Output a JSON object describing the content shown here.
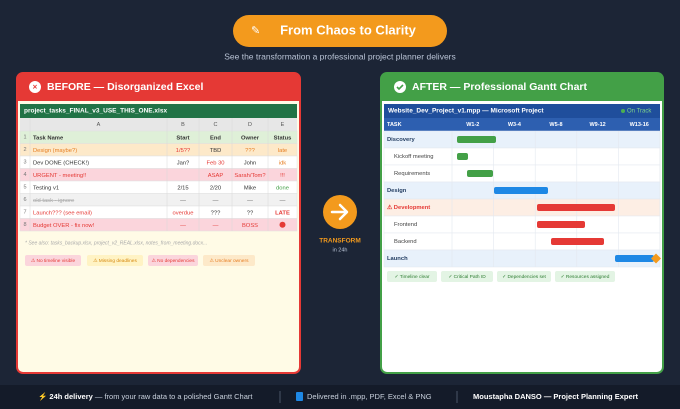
{
  "header": {
    "badge": "From Chaos to Clarity",
    "subtitle": "See the transformation a professional project planner delivers"
  },
  "before": {
    "title": "BEFORE — Disorganized Excel",
    "filename": "project_tasks_FINAL_v3_USE_THIS_ONE.xlsx",
    "columns": [
      "A",
      "B",
      "C",
      "D",
      "E"
    ],
    "row_numbers": [
      "1",
      "2",
      "3",
      "4",
      "5",
      "6",
      "7",
      "8"
    ],
    "header_row": [
      "Task Name",
      "Start",
      "End",
      "Owner",
      "Status"
    ],
    "rows": [
      [
        "Design (maybe?)",
        "1/5??",
        "TBD",
        "???",
        "late"
      ],
      [
        "Dev DONE (CHECK!)",
        "Jan?",
        "Feb 30",
        "John",
        "idk"
      ],
      [
        "URGENT - meeting!!",
        null,
        "ASAP",
        "Sarah/Tom?",
        "!!!"
      ],
      [
        "Testing v1",
        "2/15",
        "2/20",
        "Mike",
        "done"
      ],
      [
        "old task - ignore",
        "—",
        "—",
        "—",
        "—"
      ],
      [
        "Launch??? (see email)",
        "overdue",
        "???",
        "??",
        "LATE"
      ],
      [
        "Budget OVER - fix now!",
        "—",
        "—",
        "BOSS",
        null
      ]
    ],
    "note": "* See also: tasks_backup.xlsx, project_v2_REAL.xlsx, notes_from_meeting.docx...",
    "issues": [
      "⚠ No timeline visible",
      "⚠ Missing deadlines",
      "⚠ No dependencies",
      "⚠ Unclear owners"
    ]
  },
  "transform": {
    "label": "TRANSFORM",
    "time": "in 24h"
  },
  "after": {
    "title": "AFTER — Professional Gantt Chart",
    "window_title": "Website_Dev_Project_v1.mpp — Microsoft Project",
    "status": "On Track",
    "task_header": "TASK",
    "periods": [
      "W1-2",
      "W3-4",
      "W5-8",
      "W9-12",
      "W13-16"
    ],
    "tasks": [
      "Discovery",
      "Kickoff meeting",
      "Requirements",
      "Design",
      "⚠ Development",
      "Frontend",
      "Backend",
      "Launch"
    ],
    "benefits": [
      "✓ Timeline clear",
      "✓ Critical Path ID",
      "✓ Dependencies set",
      "✓ Resources assigned"
    ]
  },
  "footer": {
    "delivery_lead": "⚡ 24h delivery",
    "delivery_rest": " — from your raw data to a polished Gantt Chart",
    "formats": "Delivered in .mpp, PDF, Excel & PNG",
    "author": "Moustapha DANSO",
    "author_role": " — Project Planning Expert"
  }
}
